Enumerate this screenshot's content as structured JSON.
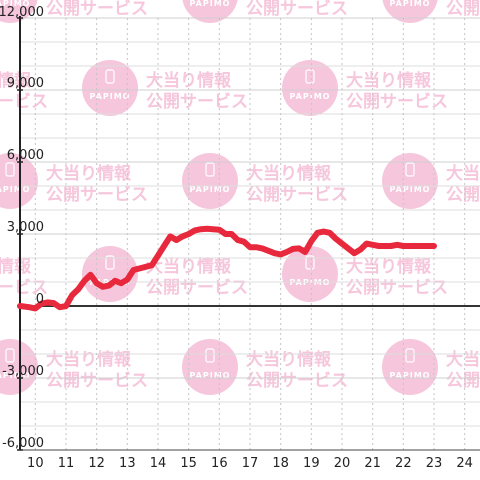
{
  "chart_data": {
    "type": "line",
    "title": "",
    "xlabel": "",
    "ylabel": "",
    "xlim": [
      9.5,
      24.5
    ],
    "ylim": [
      -6000,
      12000
    ],
    "x_ticks": [
      10,
      11,
      12,
      13,
      14,
      15,
      16,
      17,
      18,
      19,
      20,
      21,
      22,
      23,
      24
    ],
    "x_tick_labels": [
      "10",
      "11",
      "12",
      "13",
      "14",
      "15",
      "16",
      "17",
      "18",
      "19",
      "20",
      "21",
      "22",
      "23",
      "24"
    ],
    "y_ticks": [
      -6000,
      -3000,
      0,
      3000,
      6000,
      9000,
      12000
    ],
    "y_tick_labels": [
      "-6,000",
      "-3,000",
      "0",
      "3,000",
      "6,000",
      "9,000",
      "12,000"
    ],
    "grid": "on",
    "series": [
      {
        "color": "#e8283c",
        "x": [
          9.5,
          9.8,
          10.0,
          10.2,
          10.4,
          10.6,
          10.8,
          11.0,
          11.2,
          11.4,
          11.6,
          11.8,
          12.0,
          12.2,
          12.4,
          12.6,
          12.8,
          13.0,
          13.2,
          13.5,
          13.8,
          14.0,
          14.2,
          14.4,
          14.6,
          14.8,
          15.0,
          15.2,
          15.4,
          15.6,
          15.8,
          16.0,
          16.2,
          16.4,
          16.6,
          16.8,
          17.0,
          17.2,
          17.4,
          17.6,
          17.8,
          18.0,
          18.2,
          18.4,
          18.6,
          18.8,
          19.0,
          19.2,
          19.4,
          19.6,
          19.8,
          20.0,
          20.2,
          20.4,
          20.6,
          20.8,
          21.0,
          21.2,
          21.4,
          21.6,
          21.8,
          22.0,
          22.2,
          22.4,
          22.6,
          22.8,
          23.0
        ],
        "y": [
          0,
          -50,
          -100,
          100,
          150,
          120,
          -50,
          0,
          450,
          700,
          1050,
          1300,
          950,
          800,
          850,
          1050,
          950,
          1100,
          1500,
          1600,
          1700,
          2100,
          2500,
          2900,
          2750,
          2900,
          3000,
          3150,
          3200,
          3220,
          3200,
          3180,
          3000,
          3000,
          2750,
          2680,
          2450,
          2450,
          2400,
          2300,
          2200,
          2150,
          2250,
          2380,
          2400,
          2250,
          2700,
          3050,
          3100,
          3050,
          2800,
          2600,
          2400,
          2200,
          2350,
          2600,
          2550,
          2500,
          2500,
          2500,
          2550,
          2500,
          2500,
          2500,
          2500,
          2500,
          2500
        ]
      }
    ]
  },
  "watermark": {
    "line1": "大当り情報",
    "line2": "公開サービス",
    "brand": "PAPIMO",
    "color": "#f6c7dc"
  }
}
